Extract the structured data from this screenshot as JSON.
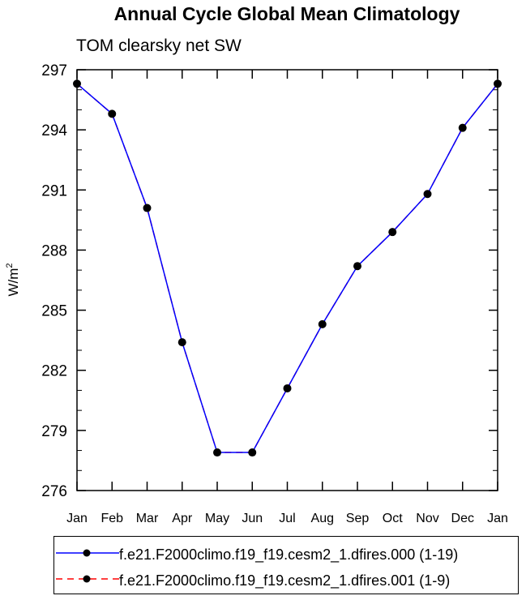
{
  "chart_data": {
    "type": "line",
    "title": "Annual Cycle Global Mean Climatology",
    "subtitle": "TOM clearsky net SW",
    "ylabel": "W/m",
    "ylabel_sup": "2",
    "xlabel": "",
    "categories": [
      "Jan",
      "Feb",
      "Mar",
      "Apr",
      "May",
      "Jun",
      "Jul",
      "Aug",
      "Sep",
      "Oct",
      "Nov",
      "Dec",
      "Jan"
    ],
    "ylim": [
      276,
      297
    ],
    "yticks": [
      276,
      279,
      282,
      285,
      288,
      291,
      294,
      297
    ],
    "grid": false,
    "legend_position": "bottom",
    "series": [
      {
        "name": "f.e21.F2000climo.f19_f19.cesm2_1.dfires.000 (1-19)",
        "color": "#0000ff",
        "style": "solid",
        "values": [
          296.3,
          294.8,
          290.1,
          283.4,
          277.9,
          277.9,
          281.1,
          284.3,
          287.2,
          288.9,
          290.8,
          294.1,
          296.3
        ]
      },
      {
        "name": "f.e21.F2000climo.f19_f19.cesm2_1.dfires.001 (1-9)",
        "color": "#ff0000",
        "style": "dashed",
        "values": [
          296.3,
          294.8,
          290.1,
          283.4,
          277.9,
          277.9,
          281.1,
          284.3,
          287.2,
          288.9,
          290.8,
          294.1,
          296.3
        ]
      }
    ]
  }
}
